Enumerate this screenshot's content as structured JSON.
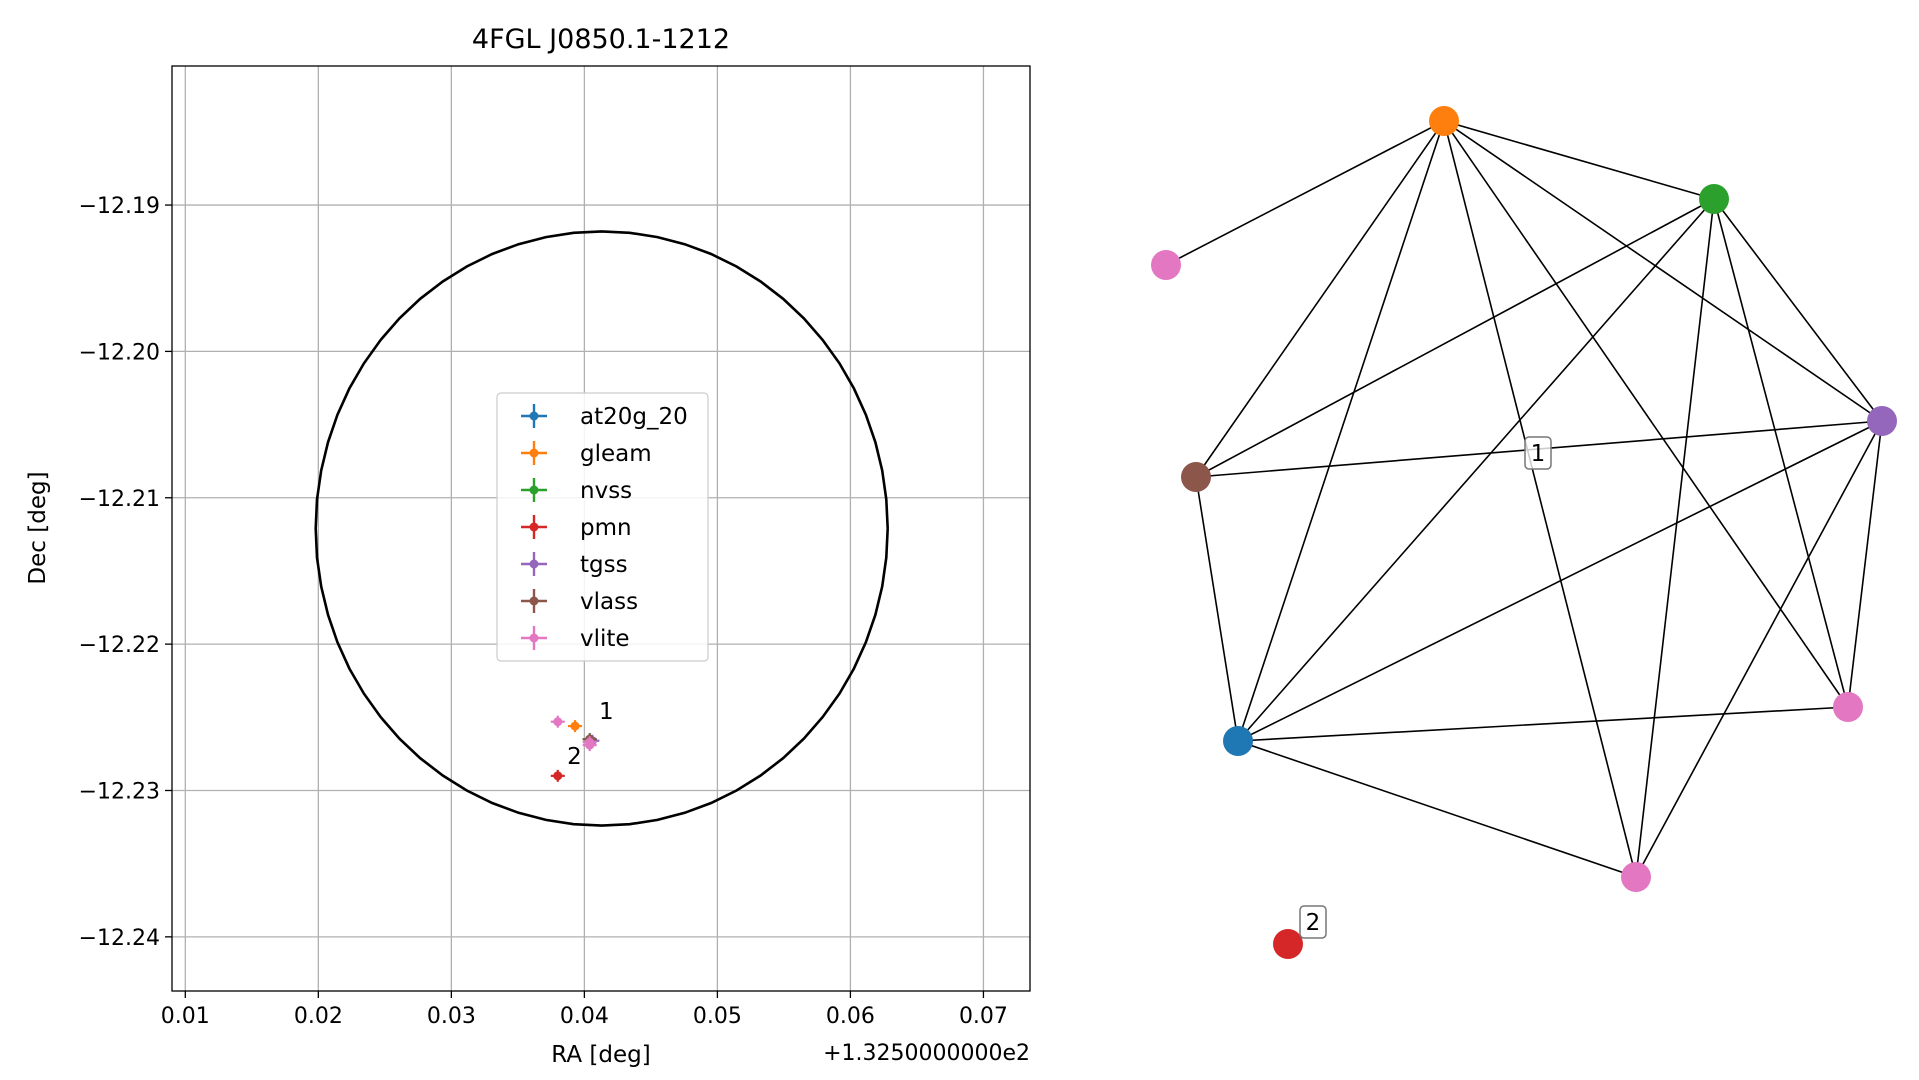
{
  "chart_data": [
    {
      "type": "scatter",
      "title": "4FGL J0850.1-1212",
      "xlabel": "RA [deg]",
      "ylabel": "Dec [deg]",
      "x_offset_label": "+1.3250000000e2",
      "xlim": [
        0.009,
        0.0735
      ],
      "ylim": [
        -12.2437,
        -12.1805
      ],
      "x_ticks": [
        0.01,
        0.02,
        0.03,
        0.04,
        0.05,
        0.06,
        0.07
      ],
      "x_tick_labels": [
        "0.01",
        "0.02",
        "0.03",
        "0.04",
        "0.05",
        "0.06",
        "0.07"
      ],
      "y_ticks": [
        -12.19,
        -12.2,
        -12.21,
        -12.22,
        -12.23,
        -12.24
      ],
      "y_tick_labels": [
        "−12.19",
        "−12.20",
        "−12.21",
        "−12.22",
        "−12.23",
        "−12.24"
      ],
      "grid": true,
      "legend_placement": "center",
      "ellipse": {
        "center": [
          0.0413,
          -12.2121
        ],
        "semi_axis_x": 0.0215,
        "semi_axis_y": 0.0203,
        "color": "#000000"
      },
      "series": [
        {
          "name": "at20g_20",
          "color": "#1f77b4",
          "points": [
            {
              "x": 0.0404,
              "y": -12.2265
            }
          ]
        },
        {
          "name": "gleam",
          "color": "#ff7f0e",
          "points": [
            {
              "x": 0.0393,
              "y": -12.2256
            }
          ]
        },
        {
          "name": "nvss",
          "color": "#2ca02c",
          "points": [
            {
              "x": 0.0404,
              "y": -12.2265
            }
          ]
        },
        {
          "name": "pmn",
          "color": "#d62728",
          "points": [
            {
              "x": 0.038,
              "y": -12.229
            }
          ]
        },
        {
          "name": "tgss",
          "color": "#9467bd",
          "points": [
            {
              "x": 0.0406,
              "y": -12.2266
            }
          ]
        },
        {
          "name": "vlass",
          "color": "#8c564b",
          "points": [
            {
              "x": 0.0404,
              "y": -12.2265
            }
          ]
        },
        {
          "name": "vlite",
          "color": "#e377c2",
          "points": [
            {
              "x": 0.038,
              "y": -12.2253
            },
            {
              "x": 0.0404,
              "y": -12.2269
            },
            {
              "x": 0.0404,
              "y": -12.2267
            }
          ]
        }
      ],
      "annotations": [
        {
          "text": "1",
          "x": 0.0411,
          "y": -12.2251
        },
        {
          "text": "2",
          "x": 0.0387,
          "y": -12.2282
        }
      ]
    },
    {
      "type": "network",
      "nodes": [
        {
          "id": "at20g_20",
          "color": "#1f77b4"
        },
        {
          "id": "gleam",
          "color": "#ff7f0e"
        },
        {
          "id": "nvss",
          "color": "#2ca02c"
        },
        {
          "id": "pmn",
          "color": "#d62728"
        },
        {
          "id": "tgss",
          "color": "#9467bd"
        },
        {
          "id": "vlass",
          "color": "#8c564b"
        },
        {
          "id": "vlite_a",
          "color": "#e377c2"
        },
        {
          "id": "vlite_b",
          "color": "#e377c2"
        },
        {
          "id": "vlite_c",
          "color": "#e377c2"
        }
      ],
      "edges": [
        [
          "gleam",
          "vlite_a"
        ],
        [
          "gleam",
          "nvss"
        ],
        [
          "gleam",
          "vlass"
        ],
        [
          "gleam",
          "at20g_20"
        ],
        [
          "gleam",
          "vlite_c"
        ],
        [
          "gleam",
          "vlite_b"
        ],
        [
          "gleam",
          "tgss"
        ],
        [
          "nvss",
          "vlass"
        ],
        [
          "nvss",
          "at20g_20"
        ],
        [
          "nvss",
          "tgss"
        ],
        [
          "nvss",
          "vlite_b"
        ],
        [
          "nvss",
          "vlite_c"
        ],
        [
          "tgss",
          "vlass"
        ],
        [
          "tgss",
          "at20g_20"
        ],
        [
          "tgss",
          "vlite_b"
        ],
        [
          "tgss",
          "vlite_c"
        ],
        [
          "vlass",
          "at20g_20"
        ],
        [
          "at20g_20",
          "vlite_b"
        ],
        [
          "at20g_20",
          "vlite_c"
        ]
      ],
      "labels": [
        {
          "text": "1",
          "group": "component-1"
        },
        {
          "text": "2",
          "group": "component-2"
        }
      ]
    }
  ]
}
